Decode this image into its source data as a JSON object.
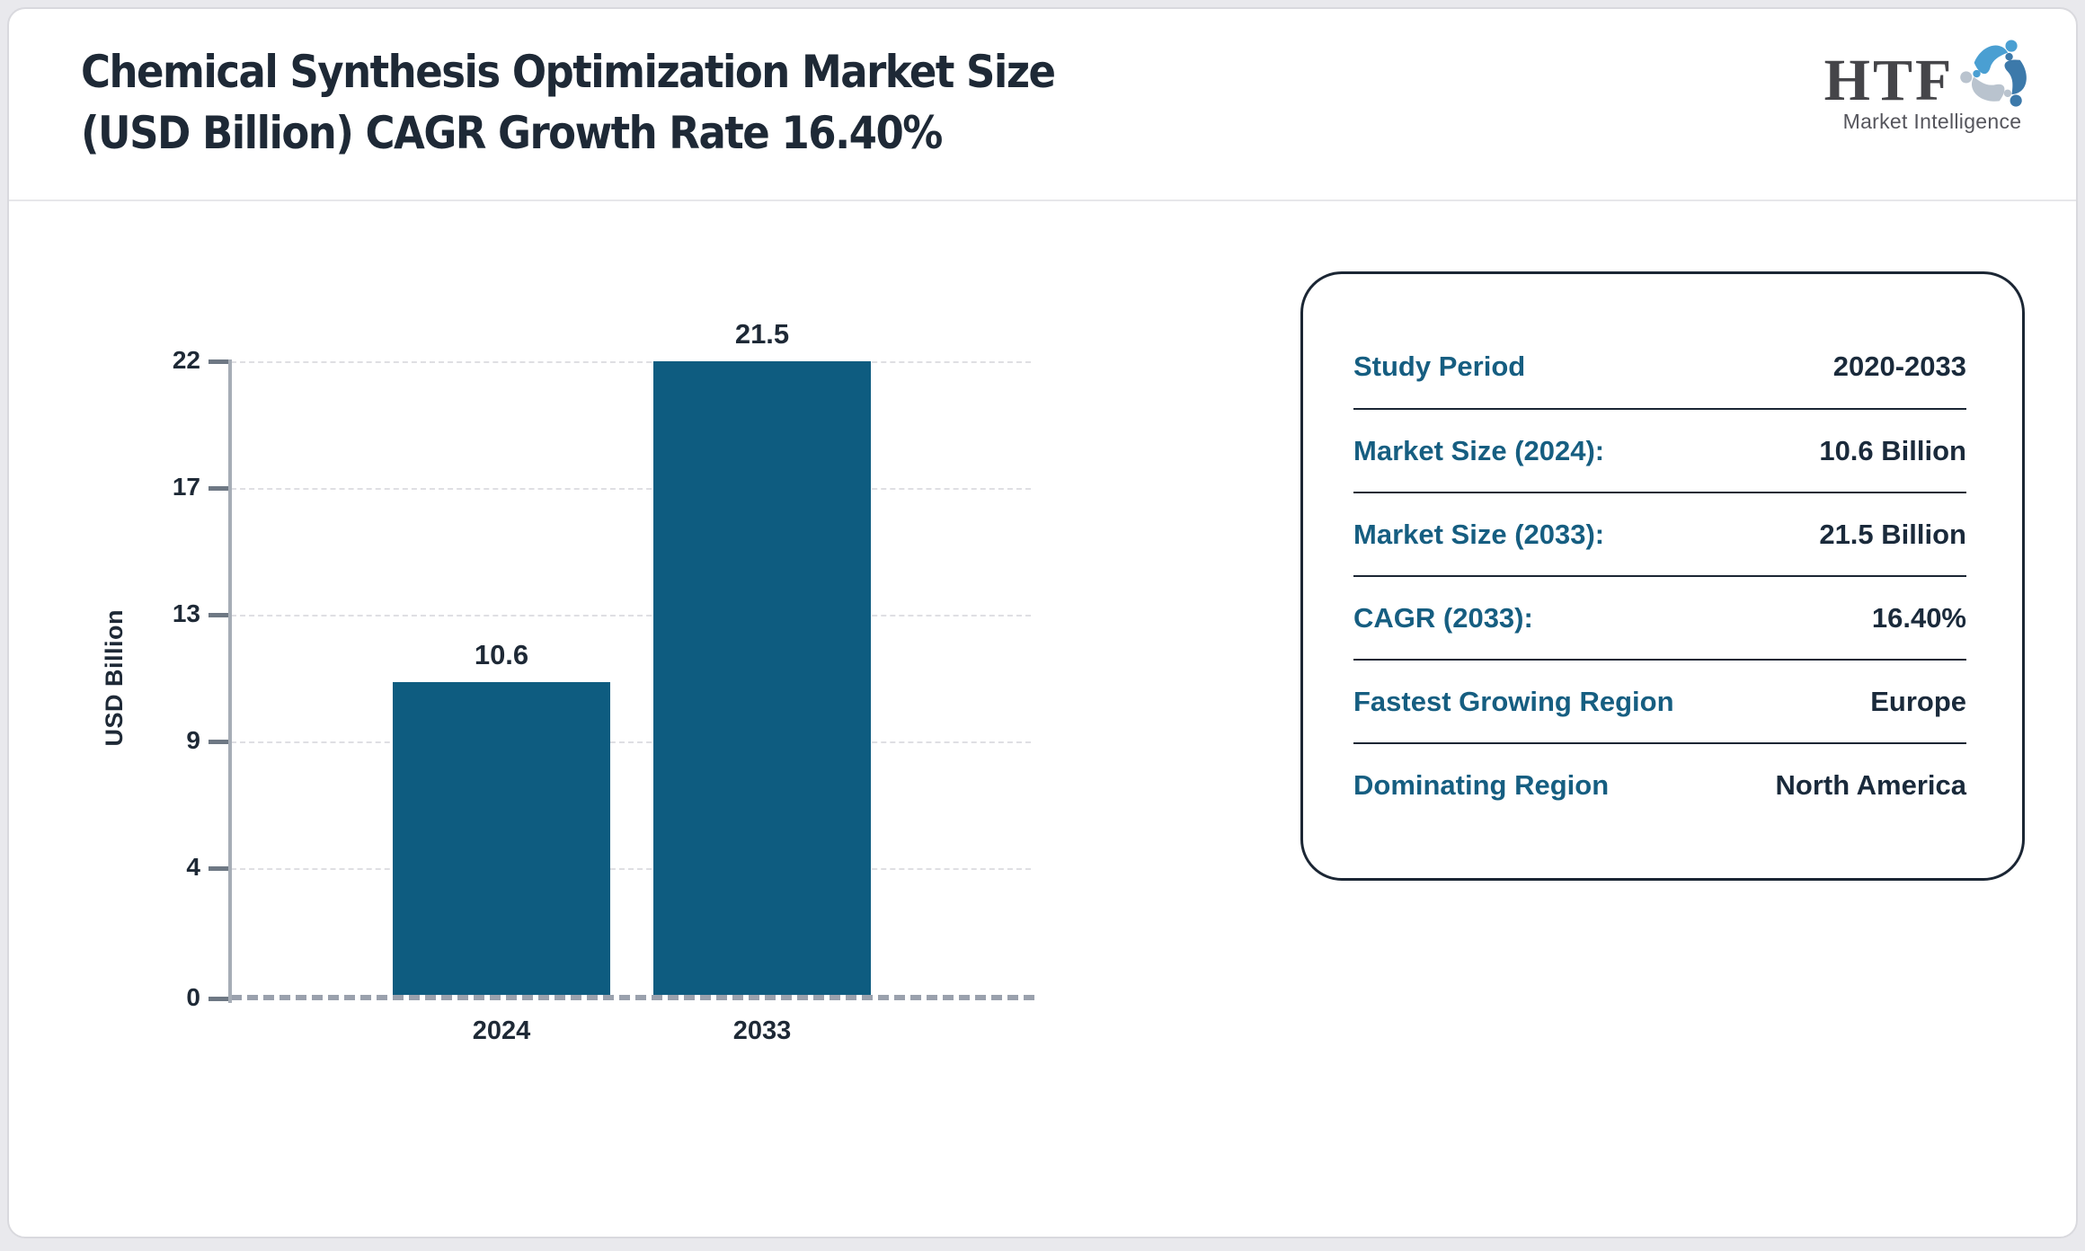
{
  "header": {
    "title_line1": "Chemical Synthesis Optimization Market Size",
    "title_line2": "(USD Billion) CAGR Growth Rate 16.40%",
    "logo": {
      "text": "HTF",
      "subtext": "Market Intelligence",
      "icon": "people-swirl-icon",
      "colors": {
        "light_blue": "#4a9fd2",
        "steel_blue": "#3c79aa",
        "gray_blue": "#b9c3ce"
      }
    }
  },
  "chart_data": {
    "type": "bar",
    "title": "Chemical Synthesis Optimization Market Size (USD Billion) CAGR Growth Rate 16.40%",
    "categories": [
      "2024",
      "2033"
    ],
    "values": [
      10.6,
      21.5
    ],
    "value_labels": [
      "10.6",
      "21.5"
    ],
    "xlabel": "",
    "ylabel": "USD Billion",
    "ylim": [
      0,
      21.5
    ],
    "ytick_labels": [
      "0",
      "4",
      "9",
      "13",
      "17",
      "22"
    ],
    "grid": true,
    "gridline_style": "dashed",
    "legend": "none",
    "bar_color": "#0e5c80",
    "label_color": "#1e2936"
  },
  "info_panel": {
    "rows": [
      {
        "label": "Study Period",
        "value": "2020-2033"
      },
      {
        "label": "Market Size (2024):",
        "value": "10.6 Billion"
      },
      {
        "label": "Market Size (2033):",
        "value": "21.5 Billion"
      },
      {
        "label": "CAGR (2033):",
        "value": "16.40%"
      },
      {
        "label": "Fastest Growing Region",
        "value": "Europe"
      },
      {
        "label": "Dominating Region",
        "value": "North America"
      }
    ],
    "label_color": "#165e81",
    "value_color": "#1a2a3b",
    "border_color": "#1b2634"
  }
}
